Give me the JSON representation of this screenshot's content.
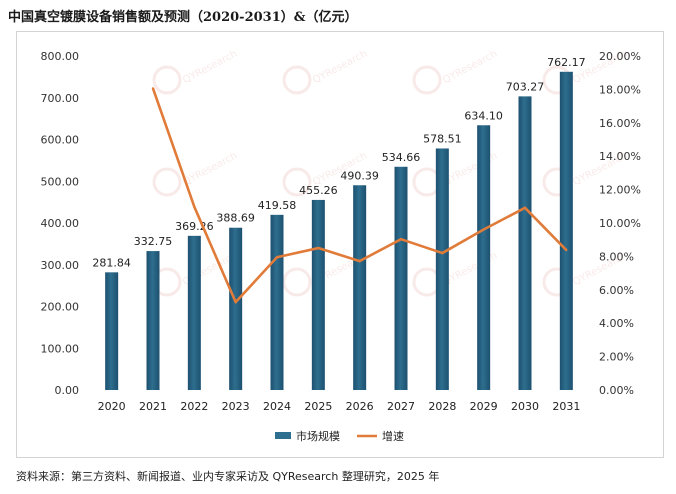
{
  "title": "中国真空镀膜设备销售额及预测（2020-2031）&（亿元）",
  "source": "资料来源：第三方资料、新闻报道、业内专家采访及 QYResearch 整理研究，2025 年",
  "watermark": "QYResearch",
  "colors": {
    "bar": "#2e6e8e",
    "bar_dark": "#1d5070",
    "line": "#e07b39",
    "axis_text": "#333333"
  },
  "chart_data": {
    "type": "bar",
    "categories": [
      "2020",
      "2021",
      "2022",
      "2023",
      "2024",
      "2025",
      "2026",
      "2027",
      "2028",
      "2029",
      "2030",
      "2031"
    ],
    "series": [
      {
        "name": "市场规模",
        "type": "bar",
        "axis": "left",
        "values": [
          281.84,
          332.75,
          369.26,
          388.69,
          419.58,
          455.26,
          490.39,
          534.66,
          578.51,
          634.1,
          703.27,
          762.17
        ],
        "labels": [
          "281.84",
          "332.75",
          "369.26",
          "388.69",
          "419.58",
          "455.26",
          "490.39",
          "534.66",
          "578.51",
          "634.10",
          "703.27",
          "762.17"
        ]
      },
      {
        "name": "增速",
        "type": "line",
        "axis": "right",
        "values": [
          null,
          18.06,
          10.97,
          5.26,
          7.95,
          8.5,
          7.72,
          9.03,
          8.2,
          9.61,
          10.91,
          8.38
        ]
      }
    ],
    "left_axis": {
      "min": 0,
      "max": 800,
      "step": 100,
      "tick_labels": [
        "0.00",
        "100.00",
        "200.00",
        "300.00",
        "400.00",
        "500.00",
        "600.00",
        "700.00",
        "800.00"
      ]
    },
    "right_axis": {
      "min": 0,
      "max": 20,
      "step": 2,
      "tick_labels": [
        "0.00%",
        "2.00%",
        "4.00%",
        "6.00%",
        "8.00%",
        "10.00%",
        "12.00%",
        "14.00%",
        "16.00%",
        "18.00%",
        "20.00%"
      ]
    },
    "legend": {
      "position": "bottom",
      "items": [
        "市场规模",
        "增速"
      ]
    }
  }
}
